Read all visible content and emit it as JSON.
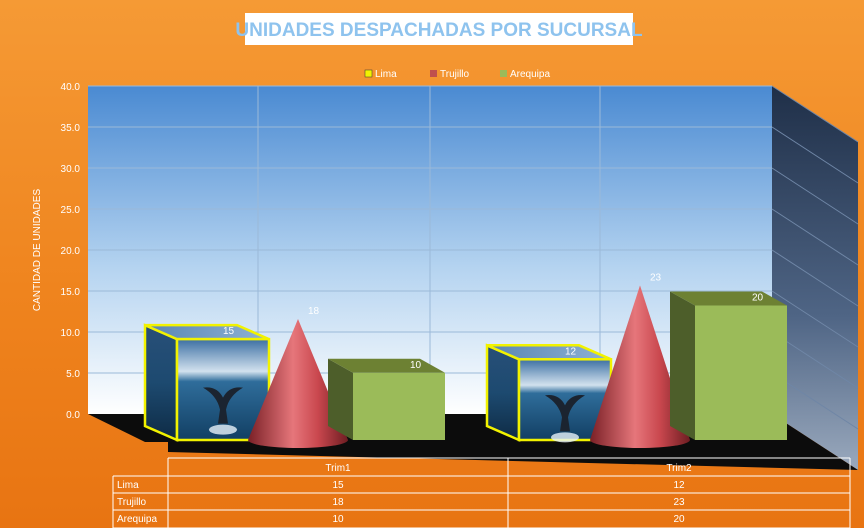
{
  "chart_data": {
    "type": "bar",
    "title": "UNIDADES DESPACHADAS POR SUCURSAL",
    "ylabel": "CANTIDAD DE UNIDADES",
    "xlabel": "",
    "categories": [
      "Trim1",
      "Trim2"
    ],
    "series": [
      {
        "name": "Lima",
        "values": [
          15,
          12
        ],
        "shape": "box-with-picture",
        "color": "#2a6fa8",
        "legend_color": "#f2f200"
      },
      {
        "name": "Trujillo",
        "values": [
          18,
          23
        ],
        "shape": "cone",
        "color": "#c9474e",
        "legend_color": "#c0504d"
      },
      {
        "name": "Arequipa",
        "values": [
          10,
          20
        ],
        "shape": "box",
        "color": "#9bbb59",
        "legend_color": "#9bbb59"
      }
    ],
    "yticks": [
      "0.0",
      "5.0",
      "10.0",
      "15.0",
      "20.0",
      "25.0",
      "30.0",
      "35.0",
      "40.0"
    ],
    "ylim": [
      0,
      40
    ],
    "grid": true,
    "legend_position": "top",
    "data_table": true,
    "value_labels": {
      "Lima": [
        "15",
        "12"
      ],
      "Trujillo": [
        "18",
        "23"
      ],
      "Arequipa": [
        "10",
        "20"
      ]
    },
    "colors": {
      "background": "#f0841f",
      "title_box": "#ffffff",
      "title_text": "#8ec3ee",
      "wall_top": "#4f8fd4",
      "wall_bottom": "#ffffff",
      "side_wall": "#2b3d57",
      "floor": "#0c0c0c"
    }
  }
}
